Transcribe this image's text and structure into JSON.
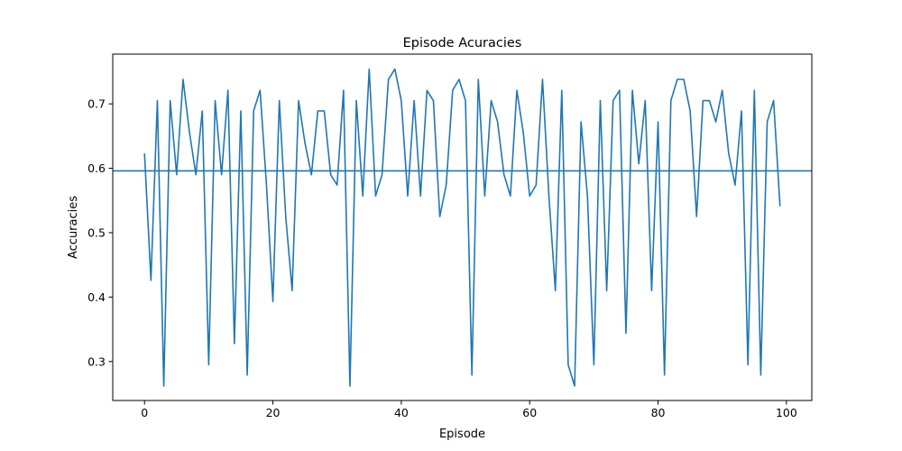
{
  "chart_data": {
    "type": "line",
    "title": "Episode Acuracies",
    "xlabel": "Episode",
    "ylabel": "Accuracies",
    "xlim": [
      -4.95,
      103.95
    ],
    "ylim": [
      0.2395,
      0.7772
    ],
    "xticks": [
      0,
      20,
      40,
      60,
      80,
      100
    ],
    "yticks": [
      0.3,
      0.4,
      0.5,
      0.6,
      0.7
    ],
    "x_tick_labels": [
      "0",
      "20",
      "40",
      "60",
      "80",
      "100"
    ],
    "y_tick_labels": [
      "0.3",
      "0.4",
      "0.5",
      "0.6",
      "0.7"
    ],
    "grid": false,
    "color": "#1f77b4",
    "hline": 0.596,
    "series": [
      {
        "values": [
          0.623,
          0.426,
          0.705,
          0.262,
          0.705,
          0.59,
          0.738,
          0.656,
          0.59,
          0.689,
          0.295,
          0.705,
          0.59,
          0.721,
          0.328,
          0.689,
          0.279,
          0.689,
          0.721,
          0.574,
          0.393,
          0.705,
          0.525,
          0.41,
          0.705,
          0.639,
          0.59,
          0.689,
          0.689,
          0.59,
          0.574,
          0.721,
          0.262,
          0.705,
          0.557,
          0.754,
          0.557,
          0.59,
          0.738,
          0.754,
          0.705,
          0.557,
          0.705,
          0.557,
          0.721,
          0.705,
          0.525,
          0.574,
          0.721,
          0.738,
          0.705,
          0.279,
          0.738,
          0.557,
          0.705,
          0.672,
          0.59,
          0.557,
          0.721,
          0.656,
          0.557,
          0.574,
          0.738,
          0.557,
          0.41,
          0.721,
          0.295,
          0.262,
          0.672,
          0.557,
          0.295,
          0.705,
          0.41,
          0.705,
          0.721,
          0.344,
          0.721,
          0.607,
          0.705,
          0.41,
          0.672,
          0.279,
          0.705,
          0.738,
          0.738,
          0.689,
          0.525,
          0.705,
          0.705,
          0.672,
          0.721,
          0.623,
          0.574,
          0.689,
          0.295,
          0.721,
          0.279,
          0.672,
          0.705,
          0.541
        ]
      }
    ]
  }
}
